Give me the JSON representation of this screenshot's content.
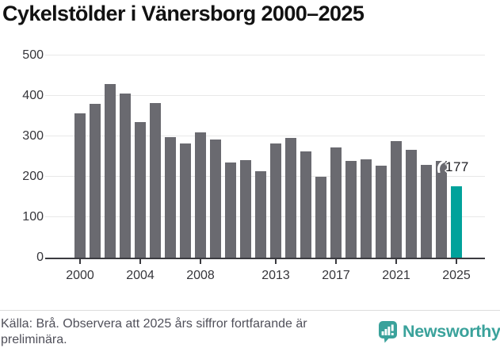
{
  "page": {
    "title": "Cykelstölder i Vänersborg 2000–2025"
  },
  "chart_data": {
    "type": "bar",
    "title": "Cykelstölder i Vänersborg 2000–2025",
    "categories": [
      2000,
      2001,
      2002,
      2003,
      2004,
      2005,
      2006,
      2007,
      2008,
      2009,
      2010,
      2011,
      2012,
      2013,
      2014,
      2015,
      2016,
      2017,
      2018,
      2019,
      2020,
      2021,
      2022,
      2023,
      2024,
      2025
    ],
    "values": [
      357,
      381,
      430,
      406,
      336,
      382,
      298,
      283,
      310,
      292,
      235,
      241,
      214,
      283,
      296,
      262,
      201,
      272,
      240,
      244,
      227,
      289,
      267,
      230,
      239,
      177
    ],
    "bar_color": "#6A6A70",
    "highlight": {
      "year": 2025,
      "value": 177,
      "label": "177",
      "color": "#00A29B"
    },
    "ylim": [
      0,
      500
    ],
    "yticks": [
      0,
      100,
      200,
      300,
      400,
      500
    ],
    "xtick_labels": [
      "2000",
      "2004",
      "2008",
      "2013",
      "2017",
      "2021",
      "2025"
    ],
    "grid": true,
    "legend": "none",
    "xlabel": "",
    "ylabel": ""
  },
  "footer": {
    "source_text": "Källa: Brå. Observera att 2025 års siffror fortfarande är preliminära.",
    "brand_name": "Newsworthy",
    "brand_color": "#3AA29B"
  }
}
